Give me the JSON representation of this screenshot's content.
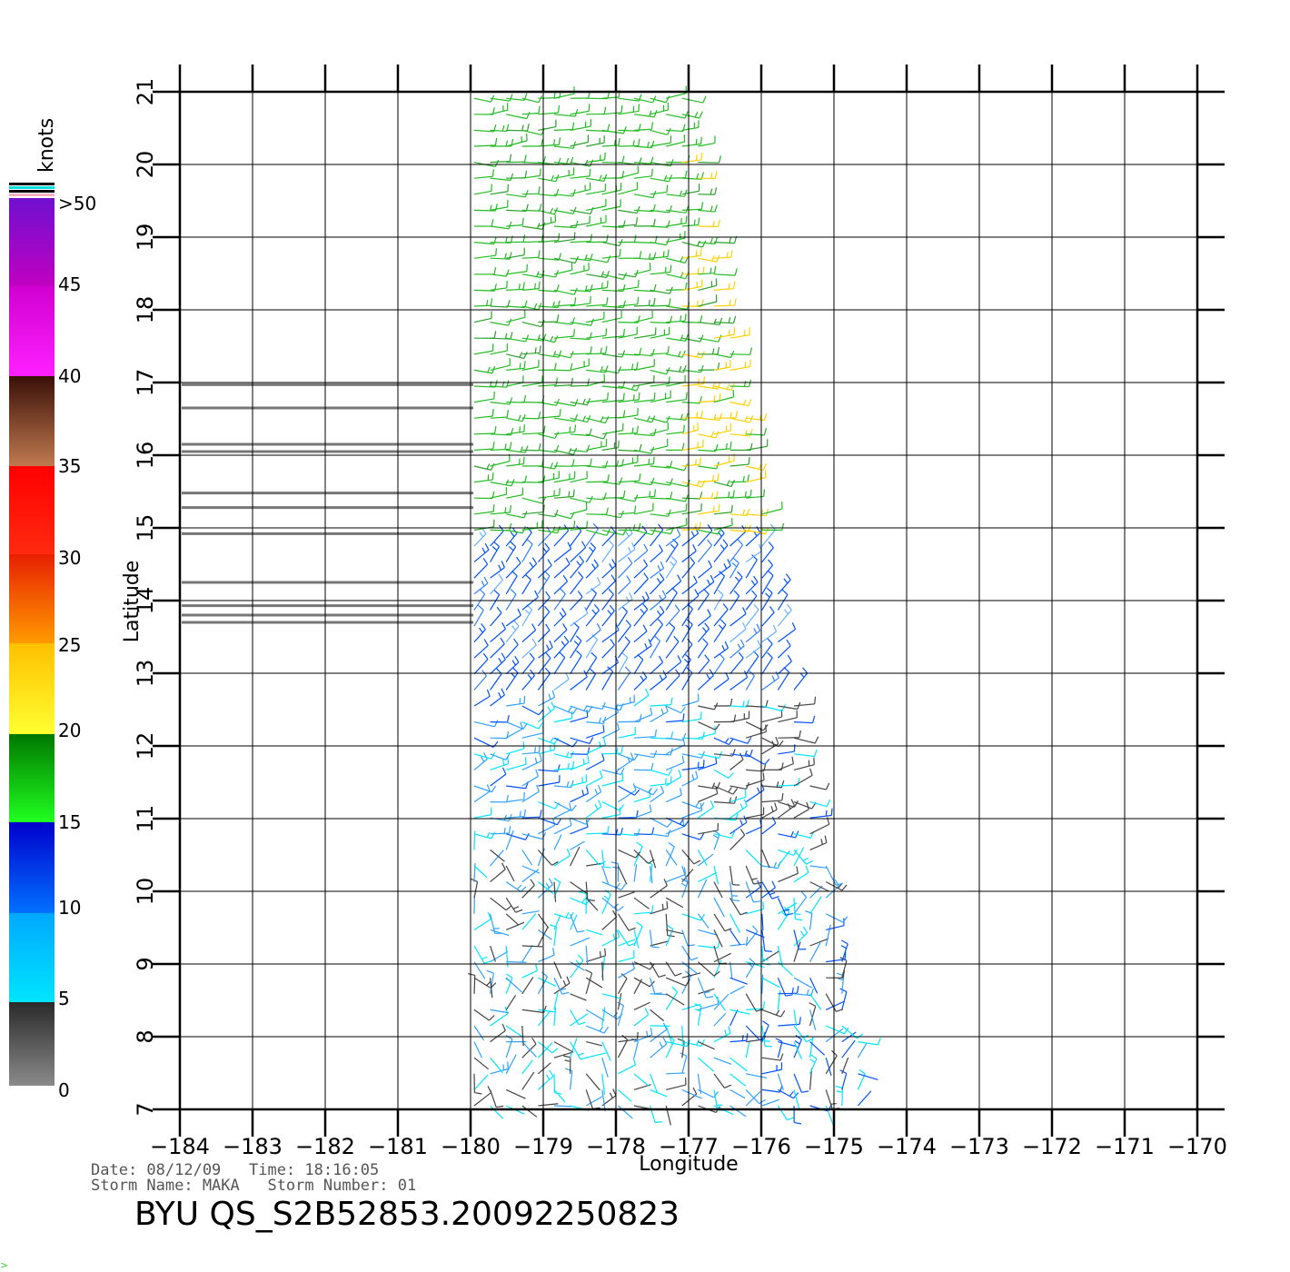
{
  "colorbar": {
    "unit_label": "knots",
    "labels": [
      "0",
      "5",
      "10",
      "15",
      "20",
      "25",
      "30",
      "35",
      "40",
      "45",
      ">50"
    ],
    "colors": {
      "calm": "#444444",
      "light": "#00e5ff",
      "blue": "#0050ff",
      "dark_blue": "#0000cc",
      "green": "#22bb22",
      "yellow": "#ffd000",
      "orange": "#ff8a00",
      "red": "#ff2000",
      "brown": "#8a4a2a",
      "magenta": "#ff10ff",
      "purple": "#7010d0",
      "rain_flag": "#777777"
    }
  },
  "map": {
    "x_axis_title": "Longitude",
    "y_axis_title": "Latitude",
    "lon_range": [
      -184,
      -170
    ],
    "lat_range": [
      7,
      21
    ],
    "lon_tick_labels": [
      "−184",
      "−183",
      "−182",
      "−181",
      "−180",
      "−179",
      "−178",
      "−177",
      "−176",
      "−175",
      "−174",
      "−173",
      "−172",
      "−171",
      "−170"
    ],
    "lat_tick_labels": [
      "7",
      "8",
      "9",
      "10",
      "11",
      "12",
      "13",
      "14",
      "15",
      "16",
      "17",
      "18",
      "19",
      "20",
      "21"
    ],
    "grid": true,
    "swath": {
      "lat_bottom": 7.0,
      "lat_top": 21.0,
      "lon_left": -180.0,
      "lon_right_bottom": -174.5,
      "lon_right_top": -177.0
    },
    "rain_flag_lines_lat": [
      16.97,
      16.65,
      16.15,
      16.05,
      15.48,
      15.28,
      14.92,
      14.25,
      13.93,
      13.8,
      13.7
    ]
  },
  "info": {
    "date_line": "Date: 08/12/09   Time: 18:16:05",
    "storm_line": "Storm Name: MAKA   Storm Number: 01"
  },
  "product_id": "BYU QS_S2B52853.20092250823"
}
